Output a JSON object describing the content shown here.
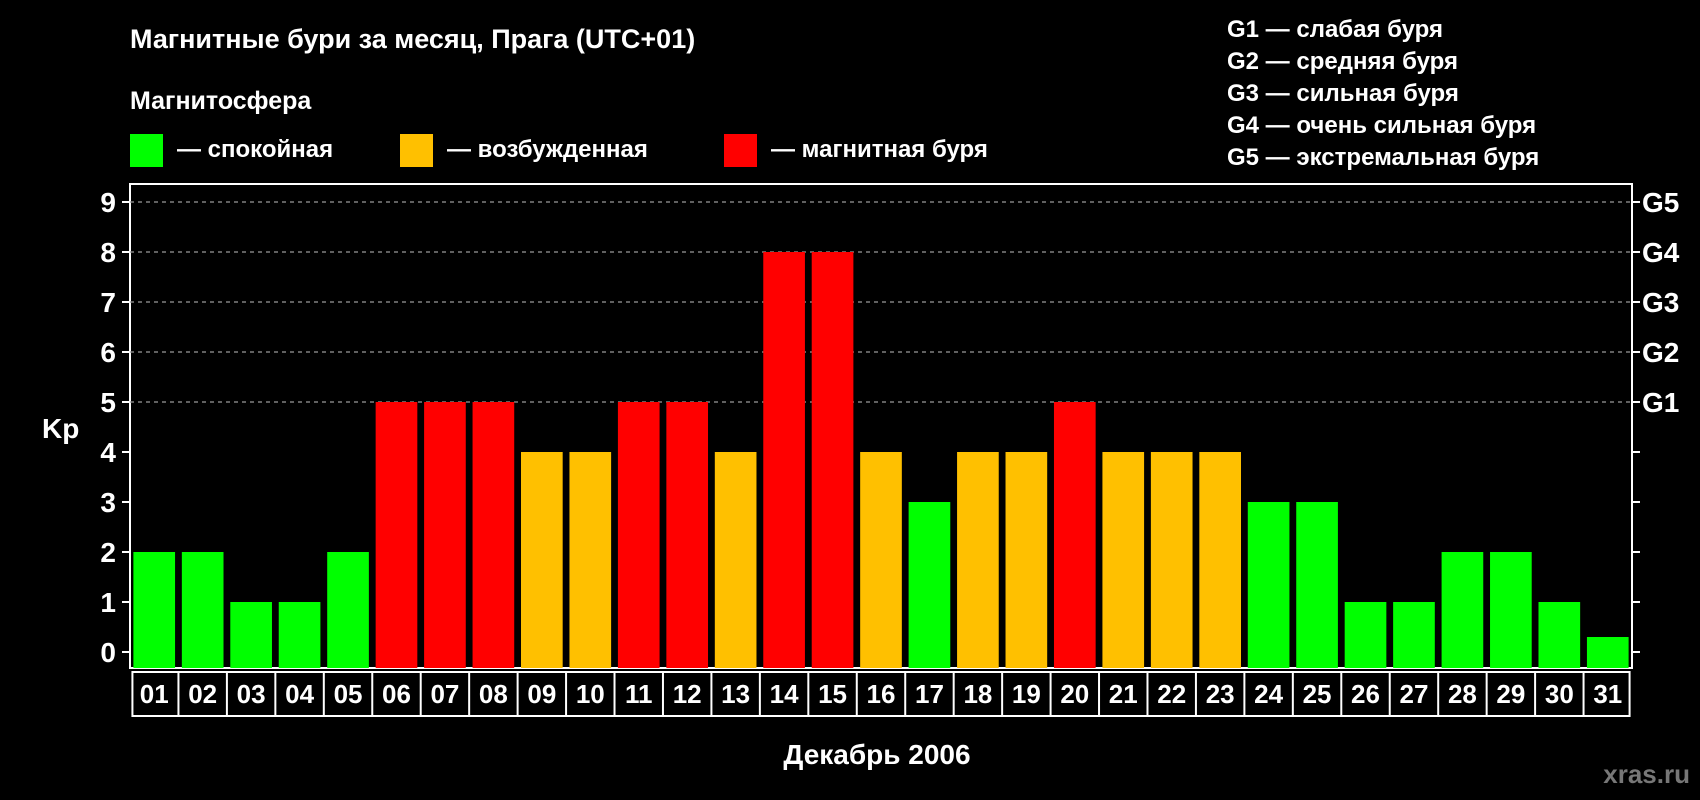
{
  "chart_data": {
    "type": "bar",
    "title": "Магнитные бури за месяц, Прага (UTC+01)",
    "legend_title": "Магнитосфера",
    "legend": [
      {
        "label": "— спокойная",
        "color": "#00ff00"
      },
      {
        "label": "— возбужденная",
        "color": "#ffc000"
      },
      {
        "label": "— магнитная буря",
        "color": "#ff0000"
      }
    ],
    "storm_scale": [
      "G1 — слабая буря",
      "G2 — средняя буря",
      "G3 — сильная буря",
      "G4 — очень сильная буря",
      "G5 — экстремальная буря"
    ],
    "ylabel": "Kp",
    "xlabel": "Декабрь 2006",
    "ylim": [
      0,
      9
    ],
    "yticks": [
      "0",
      "1",
      "2",
      "3",
      "4",
      "5",
      "6",
      "7",
      "8",
      "9"
    ],
    "right_ticks": [
      {
        "value": 5,
        "label": "G1"
      },
      {
        "value": 6,
        "label": "G2"
      },
      {
        "value": 7,
        "label": "G3"
      },
      {
        "value": 8,
        "label": "G4"
      },
      {
        "value": 9,
        "label": "G5"
      }
    ],
    "grid_y": [
      5,
      6,
      7,
      8,
      9
    ],
    "categories": [
      "01",
      "02",
      "03",
      "04",
      "05",
      "06",
      "07",
      "08",
      "09",
      "10",
      "11",
      "12",
      "13",
      "14",
      "15",
      "16",
      "17",
      "18",
      "19",
      "20",
      "21",
      "22",
      "23",
      "24",
      "25",
      "26",
      "27",
      "28",
      "29",
      "30",
      "31"
    ],
    "values": [
      2,
      2,
      1,
      1,
      2,
      5,
      5,
      5,
      4,
      4,
      5,
      5,
      4,
      8,
      8,
      4,
      3,
      4,
      4,
      5,
      4,
      4,
      4,
      3,
      3,
      1,
      1,
      2,
      2,
      1,
      0
    ],
    "colors": {
      "quiet": "#00ff00",
      "active": "#ffc000",
      "storm": "#ff0000"
    }
  },
  "watermark": "xras.ru"
}
